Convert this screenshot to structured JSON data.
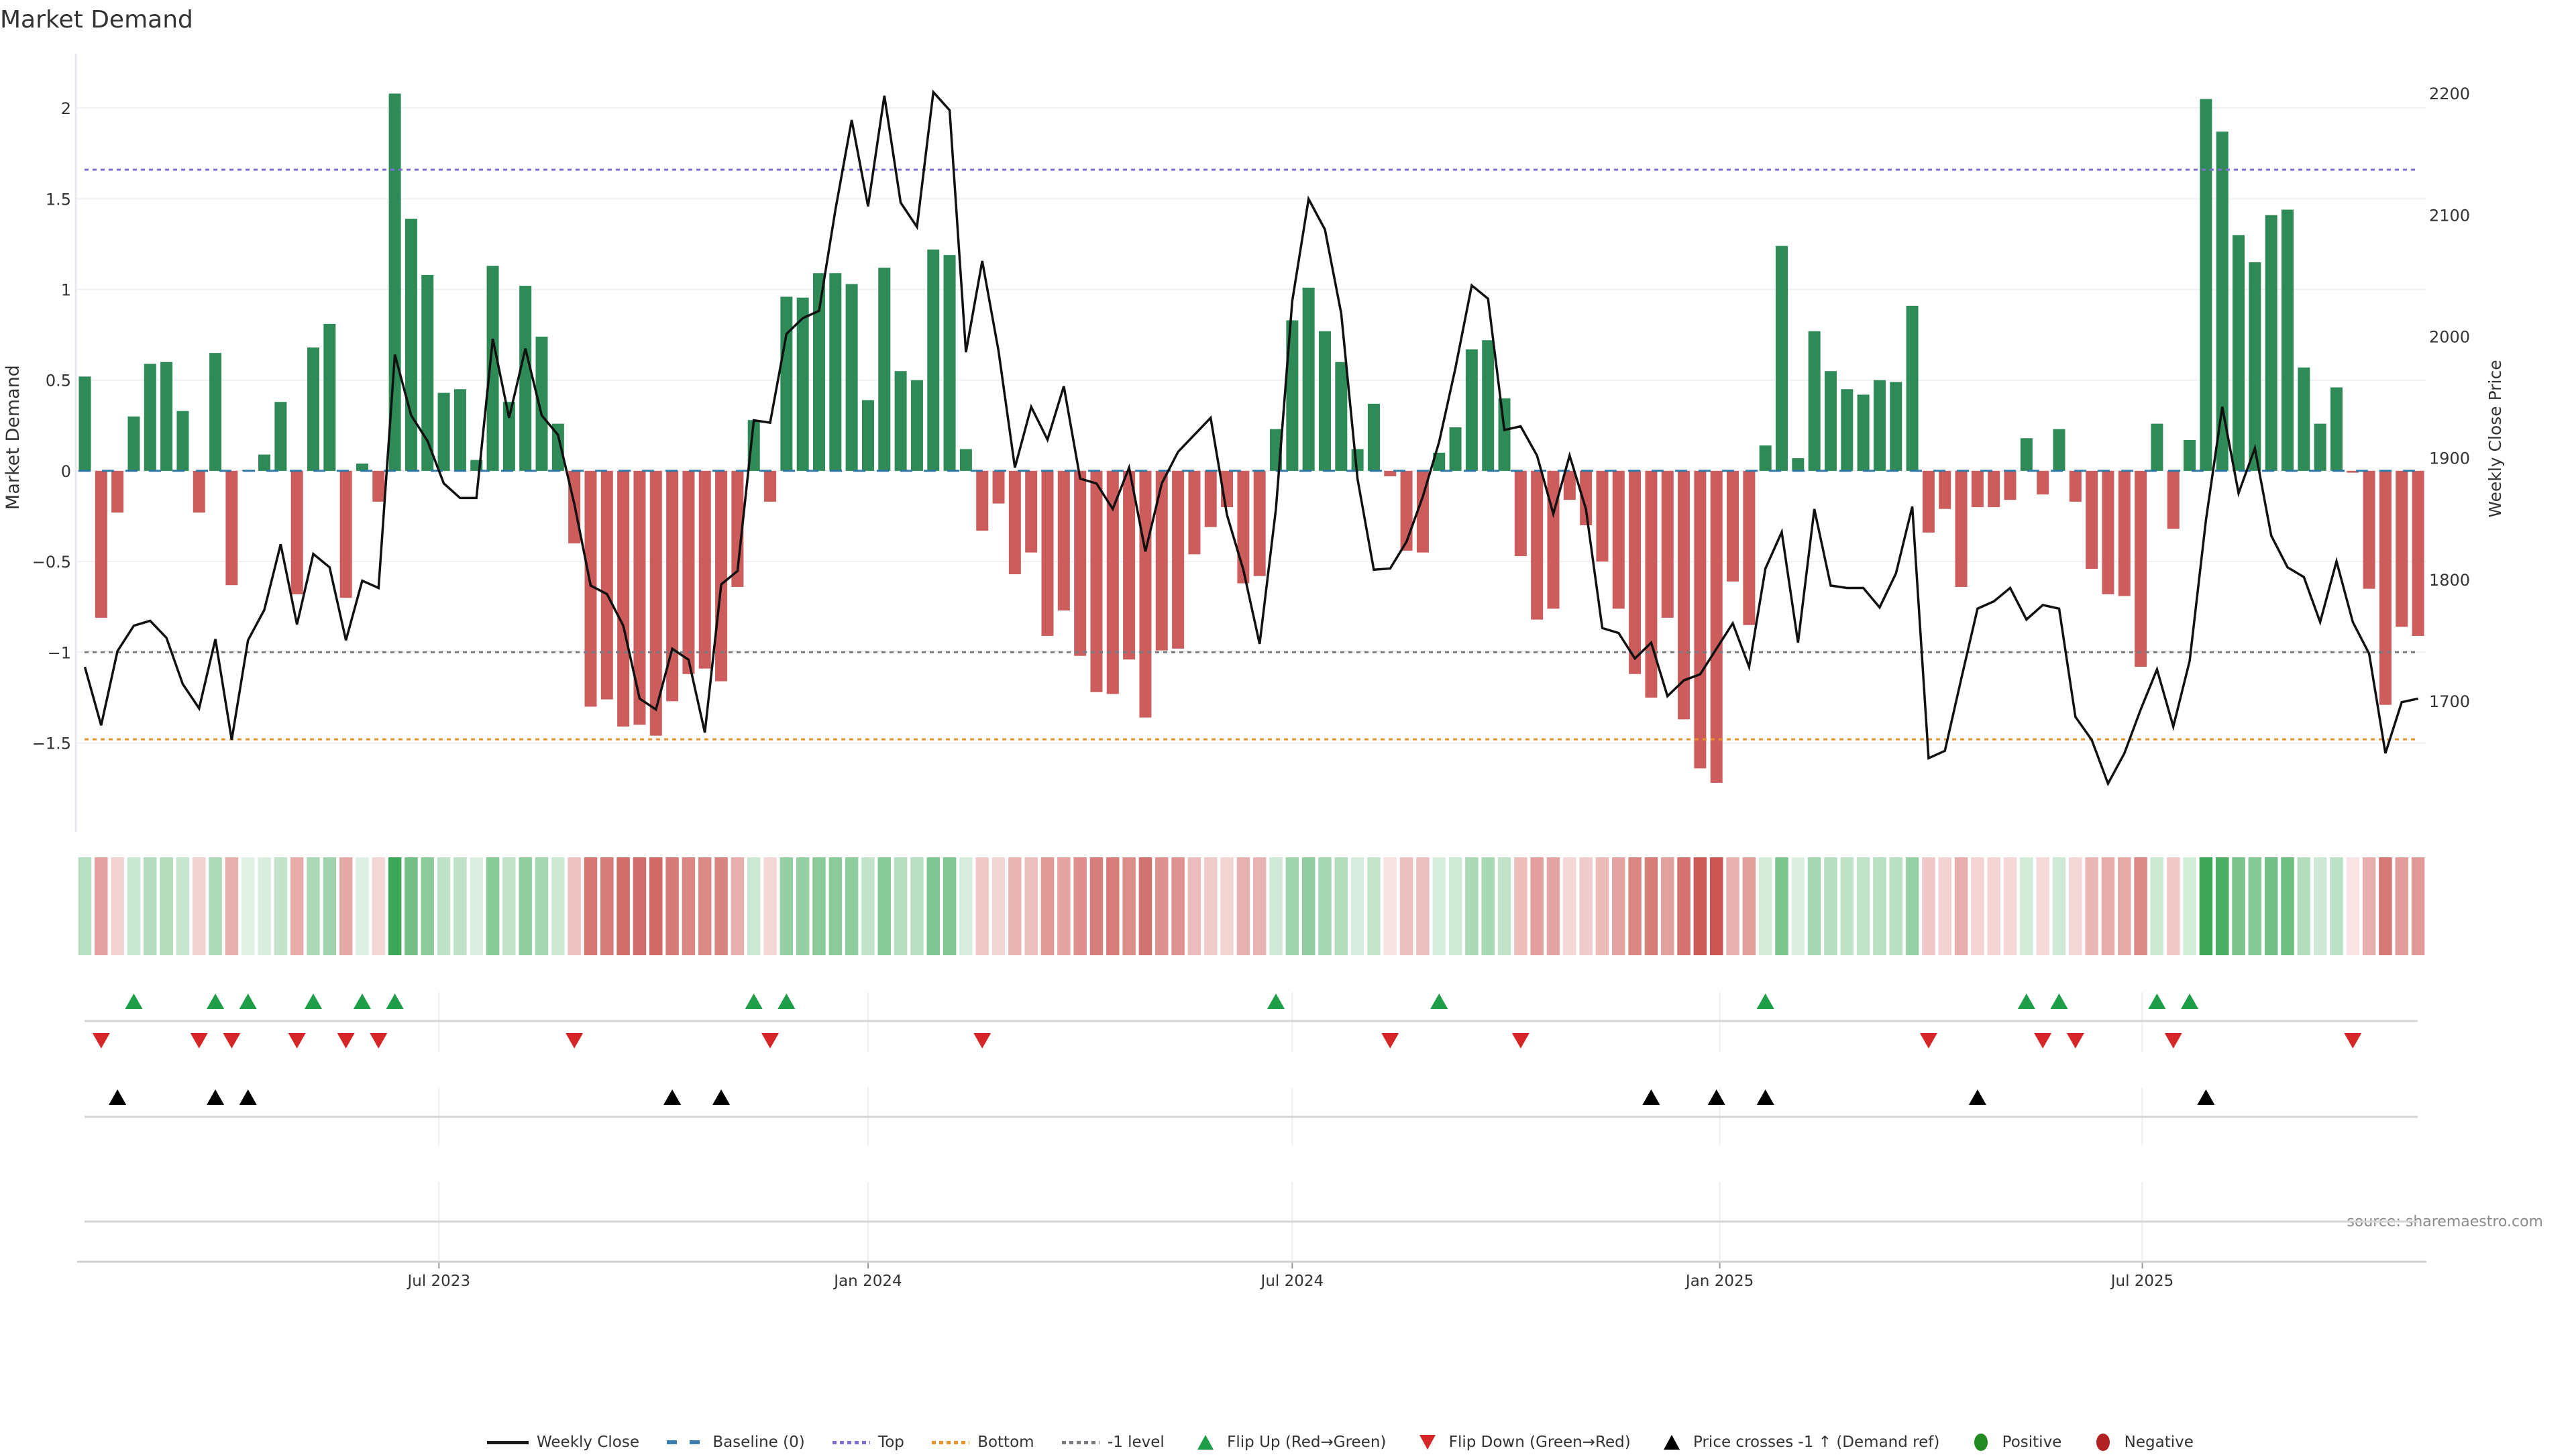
{
  "chart_data": {
    "type": "bar",
    "title": "Market Demand",
    "ylabel": "Market Demand",
    "y2label": "Weekly Close Price",
    "xlabel": "",
    "source": "source: sharemaestro.com",
    "xlim": [
      -0.555,
      143.47
    ],
    "ylim": [
      -1.99,
      2.3
    ],
    "y2lim": [
      1592.4,
      2232.6
    ],
    "grid": "horizontal",
    "legend_position": "bottom-center",
    "yticks": [
      {
        "value": 2,
        "label": "2"
      },
      {
        "value": 1.5,
        "label": "1.5"
      },
      {
        "value": 1,
        "label": "1"
      },
      {
        "value": 0.5,
        "label": "0.5"
      },
      {
        "value": 0,
        "label": "0"
      },
      {
        "value": -0.5,
        "label": "−0.5"
      },
      {
        "value": -1,
        "label": "−1"
      },
      {
        "value": -1.5,
        "label": "−1.5"
      }
    ],
    "y2ticks": [
      {
        "value": 2200,
        "label": "2200"
      },
      {
        "value": 2100,
        "label": "2100"
      },
      {
        "value": 2000,
        "label": "2000"
      },
      {
        "value": 1900,
        "label": "1900"
      },
      {
        "value": 1800,
        "label": "1800"
      },
      {
        "value": 1700,
        "label": "1700"
      }
    ],
    "xticks": [
      {
        "value": 21.7,
        "label": "Jul 2023"
      },
      {
        "value": 48.0,
        "label": "Jan 2024"
      },
      {
        "value": 74.0,
        "label": "Jul 2024"
      },
      {
        "value": 100.2,
        "label": "Jan 2025"
      },
      {
        "value": 126.1,
        "label": "Jul 2025"
      }
    ],
    "levels": {
      "baseline": 0,
      "top": 1.66,
      "bottom": -1.48,
      "minus1": -1
    },
    "series": [
      {
        "name": "Market Demand",
        "kind": "bar",
        "values": [
          0.52,
          -0.81,
          -0.23,
          0.3,
          0.59,
          0.6,
          0.33,
          -0.23,
          0.65,
          -0.63,
          0.005,
          0.09,
          0.38,
          -0.68,
          0.68,
          0.81,
          -0.7,
          0.04,
          -0.17,
          2.08,
          1.39,
          1.08,
          0.43,
          0.45,
          0.06,
          1.13,
          0.38,
          1.02,
          0.74,
          0.26,
          -0.4,
          -1.3,
          -1.26,
          -1.41,
          -1.4,
          -1.46,
          -1.27,
          -1.12,
          -1.09,
          -1.16,
          -0.64,
          0.28,
          -0.17,
          0.96,
          0.955,
          1.09,
          1.09,
          1.03,
          0.39,
          1.12,
          0.55,
          0.5,
          1.22,
          1.19,
          0.12,
          -0.33,
          -0.18,
          -0.57,
          -0.45,
          -0.91,
          -0.77,
          -1.02,
          -1.22,
          -1.23,
          -1.04,
          -1.36,
          -0.99,
          -0.98,
          -0.46,
          -0.31,
          -0.2,
          -0.62,
          -0.58,
          0.23,
          0.83,
          1.01,
          0.77,
          0.6,
          0.12,
          0.37,
          -0.03,
          -0.44,
          -0.45,
          0.1,
          0.24,
          0.67,
          0.72,
          0.4,
          -0.47,
          -0.82,
          -0.76,
          -0.16,
          -0.3,
          -0.5,
          -0.76,
          -1.12,
          -1.25,
          -0.81,
          -1.37,
          -1.64,
          -1.72,
          -0.61,
          -0.85,
          0.14,
          1.24,
          0.07,
          0.77,
          0.55,
          0.45,
          0.42,
          0.5,
          0.49,
          0.91,
          -0.34,
          -0.21,
          -0.64,
          -0.2,
          -0.2,
          -0.16,
          0.18,
          -0.13,
          0.23,
          -0.17,
          -0.54,
          -0.68,
          -0.69,
          -1.08,
          0.26,
          -0.32,
          0.17,
          2.05,
          1.87,
          1.3,
          1.15,
          1.41,
          1.44,
          0.57,
          0.26,
          0.46,
          -0.01,
          -0.65,
          -1.29,
          -0.86,
          -0.91
        ]
      },
      {
        "name": "Weekly Close",
        "kind": "line",
        "axis": "right",
        "values": [
          1728,
          1680,
          1741,
          1762,
          1766,
          1752,
          1714,
          1694,
          1751,
          1668,
          1750,
          1775,
          1829,
          1763,
          1821,
          1810,
          1750,
          1799,
          1793,
          1985,
          1935,
          1914,
          1879,
          1867,
          1867,
          1998,
          1933,
          1990,
          1935,
          1919,
          1862,
          1795,
          1788,
          1762,
          1702,
          1693,
          1743,
          1734,
          1674,
          1796,
          1807,
          1931,
          1929,
          2002,
          2015,
          2021,
          2104,
          2178,
          2107,
          2198,
          2110,
          2090,
          2201,
          2186,
          1987,
          2062,
          1988,
          1892,
          1942,
          1915,
          1959,
          1883,
          1879,
          1858,
          1892,
          1823,
          1879,
          1905,
          1919,
          1933,
          1853,
          1808,
          1747,
          1858,
          2029,
          2113,
          2088,
          2019,
          1883,
          1808,
          1809,
          1831,
          1868,
          1913,
          1974,
          2042,
          2031,
          1923,
          1926,
          1902,
          1854,
          1902,
          1858,
          1760,
          1756,
          1735,
          1748,
          1704,
          1717,
          1722,
          1743,
          1764,
          1728,
          1809,
          1839,
          1748,
          1858,
          1795,
          1793,
          1793,
          1777,
          1805,
          1860,
          1653,
          1659,
          1718,
          1776,
          1782,
          1793,
          1767,
          1779,
          1776,
          1687,
          1668,
          1632,
          1657,
          1693,
          1726,
          1679,
          1733,
          1849,
          1942,
          1871,
          1908,
          1836,
          1810,
          1802,
          1765,
          1815,
          1765,
          1739,
          1657,
          1699,
          1702
        ]
      }
    ],
    "markers": {
      "flip_up": [
        3,
        8,
        10,
        14,
        17,
        19,
        41,
        43,
        73,
        83,
        103,
        119,
        121,
        127,
        129
      ],
      "flip_down": [
        1,
        7,
        9,
        13,
        16,
        18,
        30,
        42,
        55,
        80,
        88,
        113,
        120,
        122,
        128,
        139
      ],
      "price_cross_up": [
        2,
        8,
        10,
        36,
        39,
        96,
        100,
        103,
        116,
        130
      ]
    },
    "colors": {
      "bar_positive": "#2e8b57",
      "bar_negative": "#cd5c5c",
      "heat_positive": "#3aa655",
      "heat_negative": "#c9524e",
      "price_line": "#111111",
      "baseline": "#2f78a8",
      "top": "#7b6fd6",
      "bottom": "#e8912d",
      "minus1": "#7a7a80",
      "flip_up": "#1f9e4a",
      "flip_down": "#d62728",
      "price_cross": "#000000"
    }
  },
  "legend": {
    "items": [
      {
        "label": "Weekly Close",
        "icon": "solid-line"
      },
      {
        "label": "Baseline (0)",
        "icon": "dashed-line"
      },
      {
        "label": "Top",
        "icon": "dotted-line"
      },
      {
        "label": "Bottom",
        "icon": "dotted-line"
      },
      {
        "label": "-1 level",
        "icon": "dotted-line"
      },
      {
        "label": "Flip Up (Red→Green)",
        "icon": "triangle-up"
      },
      {
        "label": "Flip Down (Green→Red)",
        "icon": "triangle-down"
      },
      {
        "label": "Price crosses -1 ↑ (Demand ref)",
        "icon": "triangle-up"
      },
      {
        "label": "Positive",
        "icon": "circle"
      },
      {
        "label": "Negative",
        "icon": "circle"
      }
    ]
  }
}
